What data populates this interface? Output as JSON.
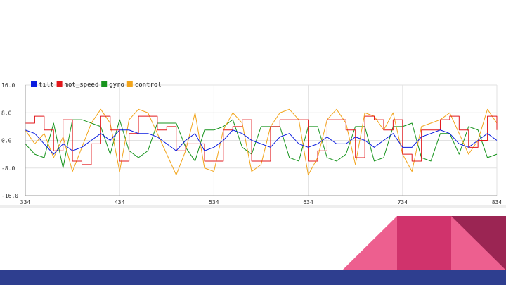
{
  "colors": {
    "tilt": "#0b1de0",
    "mot_speed": "#e2171b",
    "gyro": "#17941d",
    "control": "#f2a51c",
    "grid": "#e2e2e2",
    "axis": "#999999",
    "bottom_bar": "#2e3e8f",
    "tri_light": "#ed5f8f",
    "tri_mid": "#d0336c",
    "tri_dark": "#9b2553"
  },
  "chart_data": {
    "type": "line",
    "title": "",
    "xlabel": "",
    "ylabel": "",
    "xlim": [
      334,
      834
    ],
    "ylim": [
      -16.0,
      16.0
    ],
    "yticks": [
      "16.0",
      "8.0",
      "0.0",
      "-8.0",
      "-16.0"
    ],
    "ytick_values": [
      16,
      8,
      0,
      -8,
      -16
    ],
    "xticks": [
      "334",
      "434",
      "534",
      "634",
      "734",
      "834"
    ],
    "xtick_values": [
      334,
      434,
      534,
      634,
      734,
      834
    ],
    "grid": true,
    "legend_position": "top-left",
    "x": [
      334,
      344,
      354,
      364,
      374,
      384,
      394,
      404,
      414,
      424,
      434,
      444,
      454,
      464,
      474,
      484,
      494,
      504,
      514,
      524,
      534,
      544,
      554,
      564,
      574,
      584,
      594,
      604,
      614,
      624,
      634,
      644,
      654,
      664,
      674,
      684,
      694,
      704,
      714,
      724,
      734,
      744,
      754,
      764,
      774,
      784,
      794,
      804,
      814,
      824,
      834
    ],
    "series": [
      {
        "name": "tilt",
        "values": [
          3,
          2,
          -1,
          -4,
          -1,
          -3,
          -2,
          0,
          2,
          0,
          3,
          3,
          2,
          2,
          1,
          -1,
          -3,
          0,
          2,
          -3,
          -2,
          0,
          3,
          2,
          0,
          -1,
          -2,
          1,
          2,
          -1,
          -2,
          -1,
          1,
          -1,
          -1,
          1,
          0,
          -2,
          0,
          2,
          -2,
          -2,
          1,
          2,
          3,
          2,
          -1,
          -2,
          0,
          2,
          0
        ]
      },
      {
        "name": "mot_speed",
        "values": [
          5,
          7,
          3,
          -3,
          6,
          -6,
          -7,
          -1,
          7,
          3,
          -6,
          2,
          7,
          7,
          3,
          4,
          -3,
          -1,
          -1,
          -6,
          -6,
          3,
          4,
          6,
          -6,
          -6,
          4,
          6,
          6,
          6,
          -6,
          -3,
          6,
          6,
          3,
          -5,
          7,
          6,
          3,
          6,
          -4,
          -6,
          3,
          3,
          6,
          7,
          3,
          -2,
          0,
          7,
          3
        ]
      },
      {
        "name": "gyro",
        "values": [
          -1,
          -4,
          -5,
          5,
          -8,
          6,
          6,
          5,
          4,
          -4,
          6,
          -3,
          -5,
          -3,
          5,
          5,
          5,
          -2,
          -6,
          3,
          3,
          4,
          6,
          -2,
          -4,
          4,
          4,
          4,
          -5,
          -6,
          4,
          4,
          -5,
          -6,
          -4,
          4,
          4,
          -6,
          -5,
          4,
          4,
          5,
          -5,
          -6,
          2,
          2,
          -4,
          4,
          3,
          -5,
          -4
        ]
      },
      {
        "name": "control",
        "values": [
          3,
          -1,
          2,
          -5,
          1,
          -9,
          -2,
          5,
          9,
          5,
          -9,
          6,
          9,
          8,
          2,
          -4,
          -10,
          -3,
          8,
          -8,
          -9,
          3,
          8,
          5,
          -9,
          -7,
          4,
          8,
          9,
          6,
          -10,
          -5,
          6,
          9,
          5,
          -7,
          8,
          7,
          3,
          8,
          -4,
          -9,
          4,
          5,
          6,
          8,
          2,
          -4,
          0,
          9,
          5
        ]
      }
    ]
  }
}
